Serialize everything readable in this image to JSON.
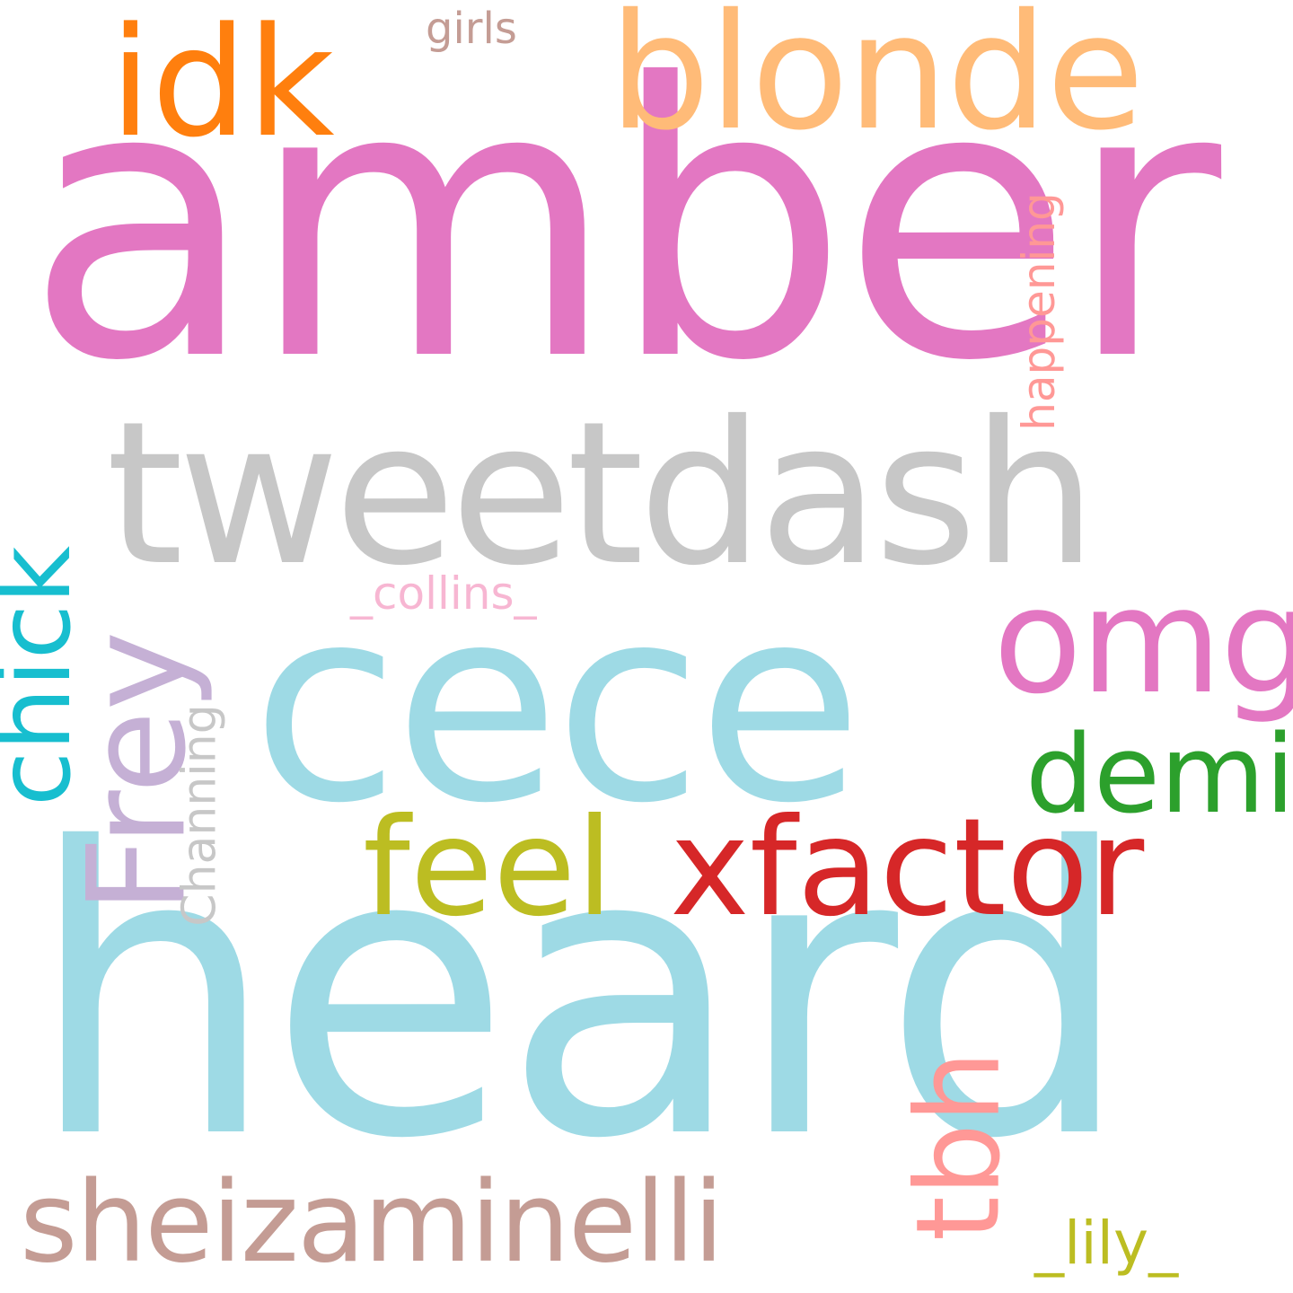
{
  "words": [
    {
      "key": "amber",
      "text": "amber",
      "color": "#e377c2"
    },
    {
      "key": "heard",
      "text": "heard",
      "color": "#9edae5"
    },
    {
      "key": "tweetdash",
      "text": "tweetdash",
      "color": "#c7c7c7"
    },
    {
      "key": "cece",
      "text": "cece",
      "color": "#9edae5"
    },
    {
      "key": "blonde",
      "text": "blonde",
      "color": "#ffbb78"
    },
    {
      "key": "idk",
      "text": "idk",
      "color": "#ff7f0e"
    },
    {
      "key": "omg",
      "text": "omg",
      "color": "#e377c2"
    },
    {
      "key": "feel",
      "text": "feel",
      "color": "#bcbd22"
    },
    {
      "key": "xfactor",
      "text": "xfactor",
      "color": "#d62728"
    },
    {
      "key": "demi",
      "text": "demi",
      "color": "#2ca02c"
    },
    {
      "key": "frey",
      "text": "Frey",
      "color": "#c5b0d5"
    },
    {
      "key": "chick",
      "text": "chick",
      "color": "#17becf"
    },
    {
      "key": "sheizaminelli",
      "text": "sheizaminelli",
      "color": "#c49c94"
    },
    {
      "key": "tbh",
      "text": "tbh",
      "color": "#ff9896"
    },
    {
      "key": "lily",
      "text": "_lily_",
      "color": "#bcbd22"
    },
    {
      "key": "collins",
      "text": "_collins_",
      "color": "#f7b6d2"
    },
    {
      "key": "happening",
      "text": "happening",
      "color": "#ff9896"
    },
    {
      "key": "channing",
      "text": "Channing",
      "color": "#c7c7c7"
    },
    {
      "key": "girls",
      "text": "girls",
      "color": "#c49c94"
    }
  ]
}
